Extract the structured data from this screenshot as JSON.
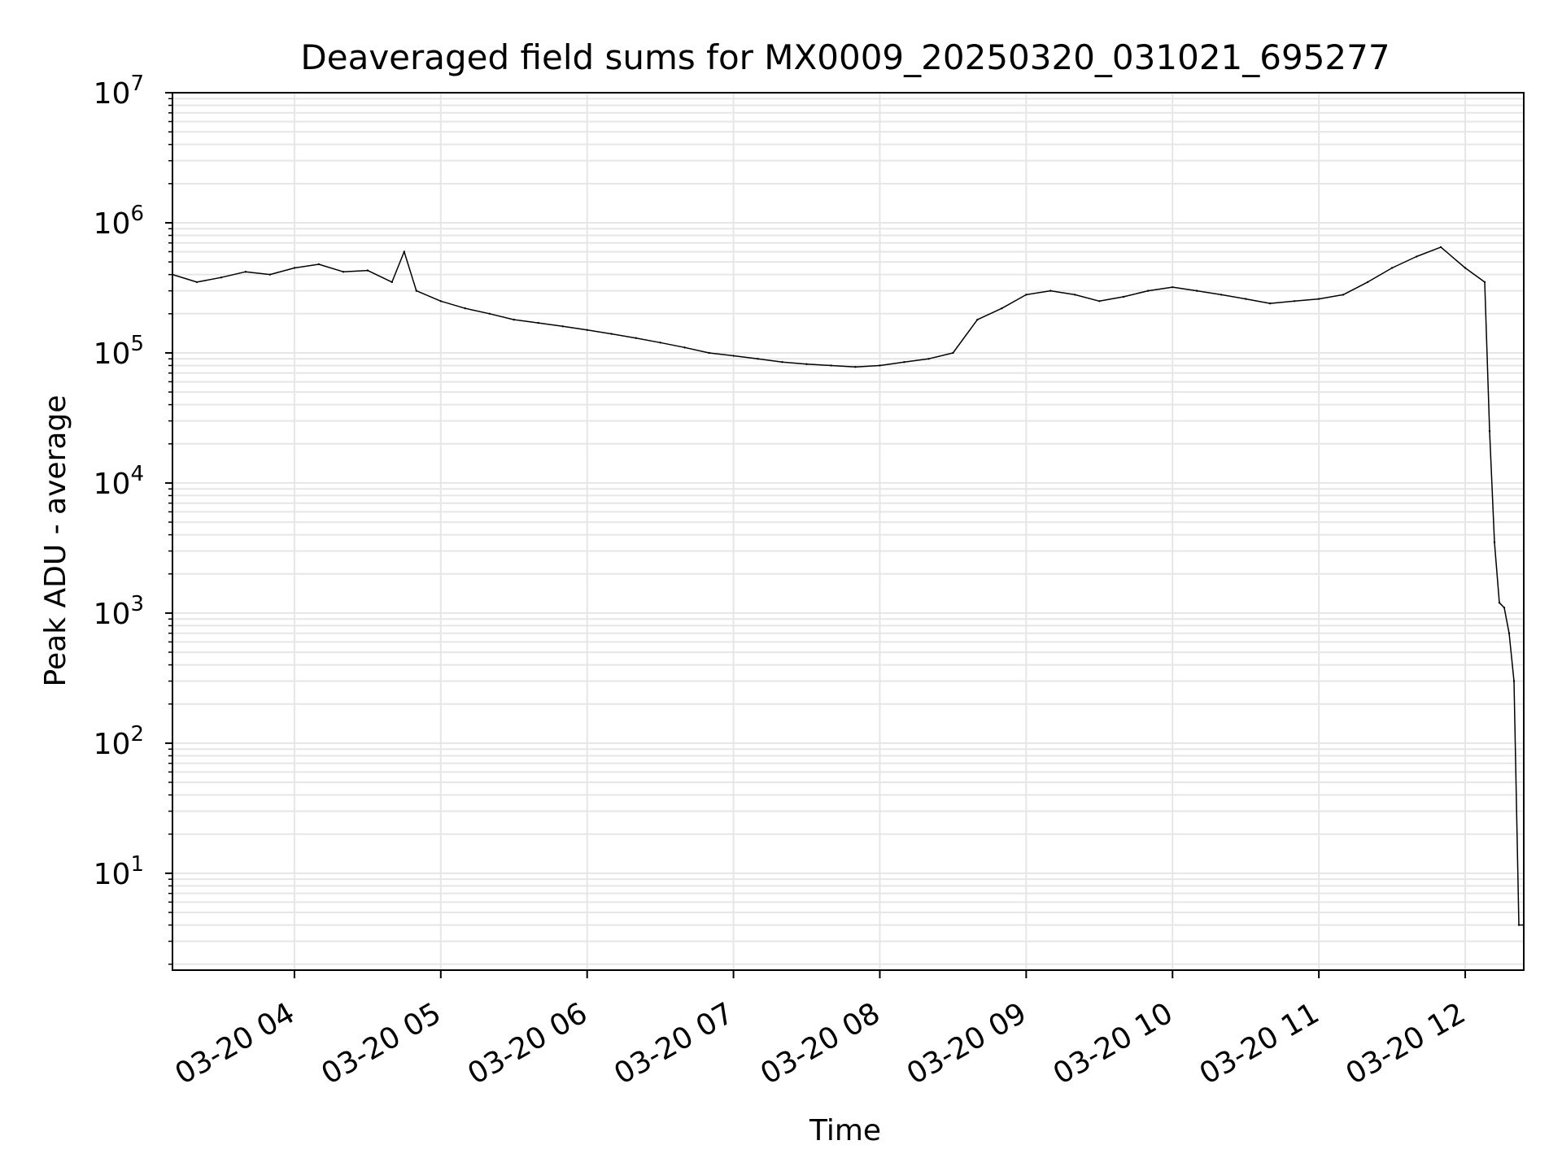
{
  "chart_data": {
    "type": "line",
    "title": "Deaveraged field sums for MX0009_20250320_031021_695277",
    "xlabel": "Time",
    "ylabel": "Peak ADU - average",
    "yscale": "log",
    "ylim": [
      1.8,
      10000000
    ],
    "xlim": [
      "2025-03-20 03:10",
      "2025-03-20 12:24"
    ],
    "grid": true,
    "line_color": "#000000",
    "x_ticks": [
      {
        "value": "2025-03-20 04:00",
        "label": "03-20 04"
      },
      {
        "value": "2025-03-20 05:00",
        "label": "03-20 05"
      },
      {
        "value": "2025-03-20 06:00",
        "label": "03-20 06"
      },
      {
        "value": "2025-03-20 07:00",
        "label": "03-20 07"
      },
      {
        "value": "2025-03-20 08:00",
        "label": "03-20 08"
      },
      {
        "value": "2025-03-20 09:00",
        "label": "03-20 09"
      },
      {
        "value": "2025-03-20 10:00",
        "label": "03-20 10"
      },
      {
        "value": "2025-03-20 11:00",
        "label": "03-20 11"
      },
      {
        "value": "2025-03-20 12:00",
        "label": "03-20 12"
      }
    ],
    "y_ticks": [
      {
        "value": 10,
        "label": "10",
        "exp": "1"
      },
      {
        "value": 100,
        "label": "10",
        "exp": "2"
      },
      {
        "value": 1000,
        "label": "10",
        "exp": "3"
      },
      {
        "value": 10000,
        "label": "10",
        "exp": "4"
      },
      {
        "value": 100000,
        "label": "10",
        "exp": "5"
      },
      {
        "value": 1000000,
        "label": "10",
        "exp": "6"
      },
      {
        "value": 10000000,
        "label": "10",
        "exp": "7"
      }
    ],
    "series": [
      {
        "x": [
          "2025-03-20 03:10",
          "2025-03-20 03:20",
          "2025-03-20 03:30",
          "2025-03-20 03:40",
          "2025-03-20 03:50",
          "2025-03-20 04:00",
          "2025-03-20 04:10",
          "2025-03-20 04:20",
          "2025-03-20 04:30",
          "2025-03-20 04:40",
          "2025-03-20 04:45",
          "2025-03-20 04:50",
          "2025-03-20 05:00",
          "2025-03-20 05:10",
          "2025-03-20 05:20",
          "2025-03-20 05:30",
          "2025-03-20 05:40",
          "2025-03-20 05:50",
          "2025-03-20 06:00",
          "2025-03-20 06:10",
          "2025-03-20 06:20",
          "2025-03-20 06:30",
          "2025-03-20 06:40",
          "2025-03-20 06:50",
          "2025-03-20 07:00",
          "2025-03-20 07:10",
          "2025-03-20 07:20",
          "2025-03-20 07:30",
          "2025-03-20 07:40",
          "2025-03-20 07:50",
          "2025-03-20 08:00",
          "2025-03-20 08:10",
          "2025-03-20 08:20",
          "2025-03-20 08:30",
          "2025-03-20 08:40",
          "2025-03-20 08:50",
          "2025-03-20 09:00",
          "2025-03-20 09:10",
          "2025-03-20 09:20",
          "2025-03-20 09:30",
          "2025-03-20 09:40",
          "2025-03-20 09:50",
          "2025-03-20 10:00",
          "2025-03-20 10:10",
          "2025-03-20 10:20",
          "2025-03-20 10:30",
          "2025-03-20 10:40",
          "2025-03-20 10:50",
          "2025-03-20 11:00",
          "2025-03-20 11:10",
          "2025-03-20 11:20",
          "2025-03-20 11:30",
          "2025-03-20 11:40",
          "2025-03-20 11:50",
          "2025-03-20 12:00",
          "2025-03-20 12:08",
          "2025-03-20 12:10",
          "2025-03-20 12:12",
          "2025-03-20 12:14",
          "2025-03-20 12:16",
          "2025-03-20 12:18",
          "2025-03-20 12:20",
          "2025-03-20 12:22",
          "2025-03-20 12:24"
        ],
        "y": [
          400000,
          350000,
          380000,
          420000,
          400000,
          450000,
          480000,
          420000,
          430000,
          350000,
          600000,
          300000,
          250000,
          220000,
          200000,
          180000,
          170000,
          160000,
          150000,
          140000,
          130000,
          120000,
          110000,
          100000,
          95000,
          90000,
          85000,
          82000,
          80000,
          78000,
          80000,
          85000,
          90000,
          100000,
          180000,
          220000,
          280000,
          300000,
          280000,
          250000,
          270000,
          300000,
          320000,
          300000,
          280000,
          260000,
          240000,
          250000,
          260000,
          280000,
          350000,
          450000,
          550000,
          650000,
          450000,
          350000,
          25000,
          3500,
          1200,
          1100,
          700,
          300,
          4,
          4
        ]
      }
    ]
  }
}
